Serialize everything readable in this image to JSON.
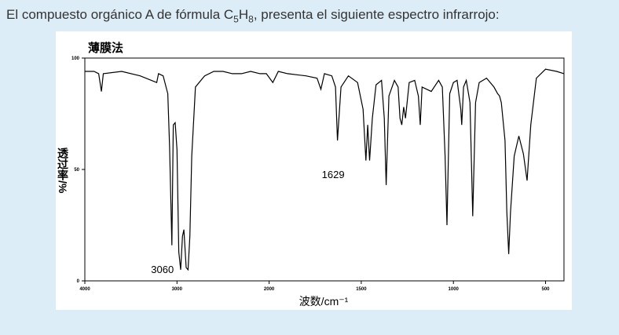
{
  "question": {
    "parts": [
      "El compuesto orgánico A de fórmula C",
      "5",
      "H",
      "8",
      ", presenta el siguiente espectro infrarrojo:"
    ]
  },
  "chart_data": {
    "type": "line",
    "title": "薄膜法",
    "x_label": "波数/cm⁻¹",
    "y_label": "透过率/%",
    "x": [
      4000,
      3900,
      3850,
      3820,
      3800,
      3600,
      3400,
      3220,
      3200,
      3150,
      3100,
      3080,
      3055,
      3040,
      3020,
      3000,
      2980,
      2960,
      2940,
      2925,
      2900,
      2880,
      2860,
      2840,
      2800,
      2700,
      2600,
      2500,
      2400,
      2300,
      2200,
      2100,
      2030,
      1980,
      1950,
      1900,
      1800,
      1740,
      1719,
      1700,
      1660,
      1640,
      1629,
      1610,
      1570,
      1520,
      1490,
      1475,
      1465,
      1455,
      1440,
      1420,
      1390,
      1375,
      1365,
      1350,
      1320,
      1300,
      1290,
      1280,
      1270,
      1260,
      1240,
      1210,
      1190,
      1180,
      1170,
      1120,
      1080,
      1060,
      1045,
      1035,
      1020,
      1000,
      980,
      960,
      955,
      945,
      930,
      910,
      895,
      880,
      860,
      820,
      780,
      760,
      750,
      740,
      720,
      710,
      700,
      690,
      670,
      645,
      620,
      600,
      580,
      550,
      500,
      440,
      400
    ],
    "values": [
      94,
      94,
      93,
      85,
      93,
      94,
      92,
      89,
      93,
      92,
      84,
      60,
      16,
      70,
      71,
      59,
      13,
      5,
      20,
      23,
      6,
      5,
      20,
      56,
      87,
      92,
      94,
      94,
      93,
      93,
      94,
      93,
      93,
      89,
      94,
      93,
      92,
      91,
      86,
      93,
      92,
      87,
      63,
      87,
      92,
      89,
      77,
      54,
      70,
      54,
      73,
      88,
      90,
      73,
      43,
      83,
      90,
      87,
      73,
      70,
      78,
      73,
      89,
      90,
      83,
      70,
      87,
      85,
      90,
      87,
      56,
      25,
      84,
      89,
      90,
      77,
      70,
      87,
      90,
      80,
      29,
      80,
      89,
      91,
      87,
      84,
      83,
      80,
      63,
      31,
      12,
      31,
      56,
      65,
      57,
      45,
      70,
      91,
      95,
      94,
      93
    ],
    "color": "#000000",
    "xlim": [
      4000,
      400
    ],
    "xticks": [
      4000,
      3000,
      2000,
      1500,
      1000,
      500
    ],
    "ylim": [
      0,
      100
    ],
    "yticks": [
      0,
      50,
      100
    ],
    "annotations": [
      {
        "text": "3060",
        "x": 3060
      },
      {
        "text": "1629",
        "x": 1629
      }
    ]
  }
}
